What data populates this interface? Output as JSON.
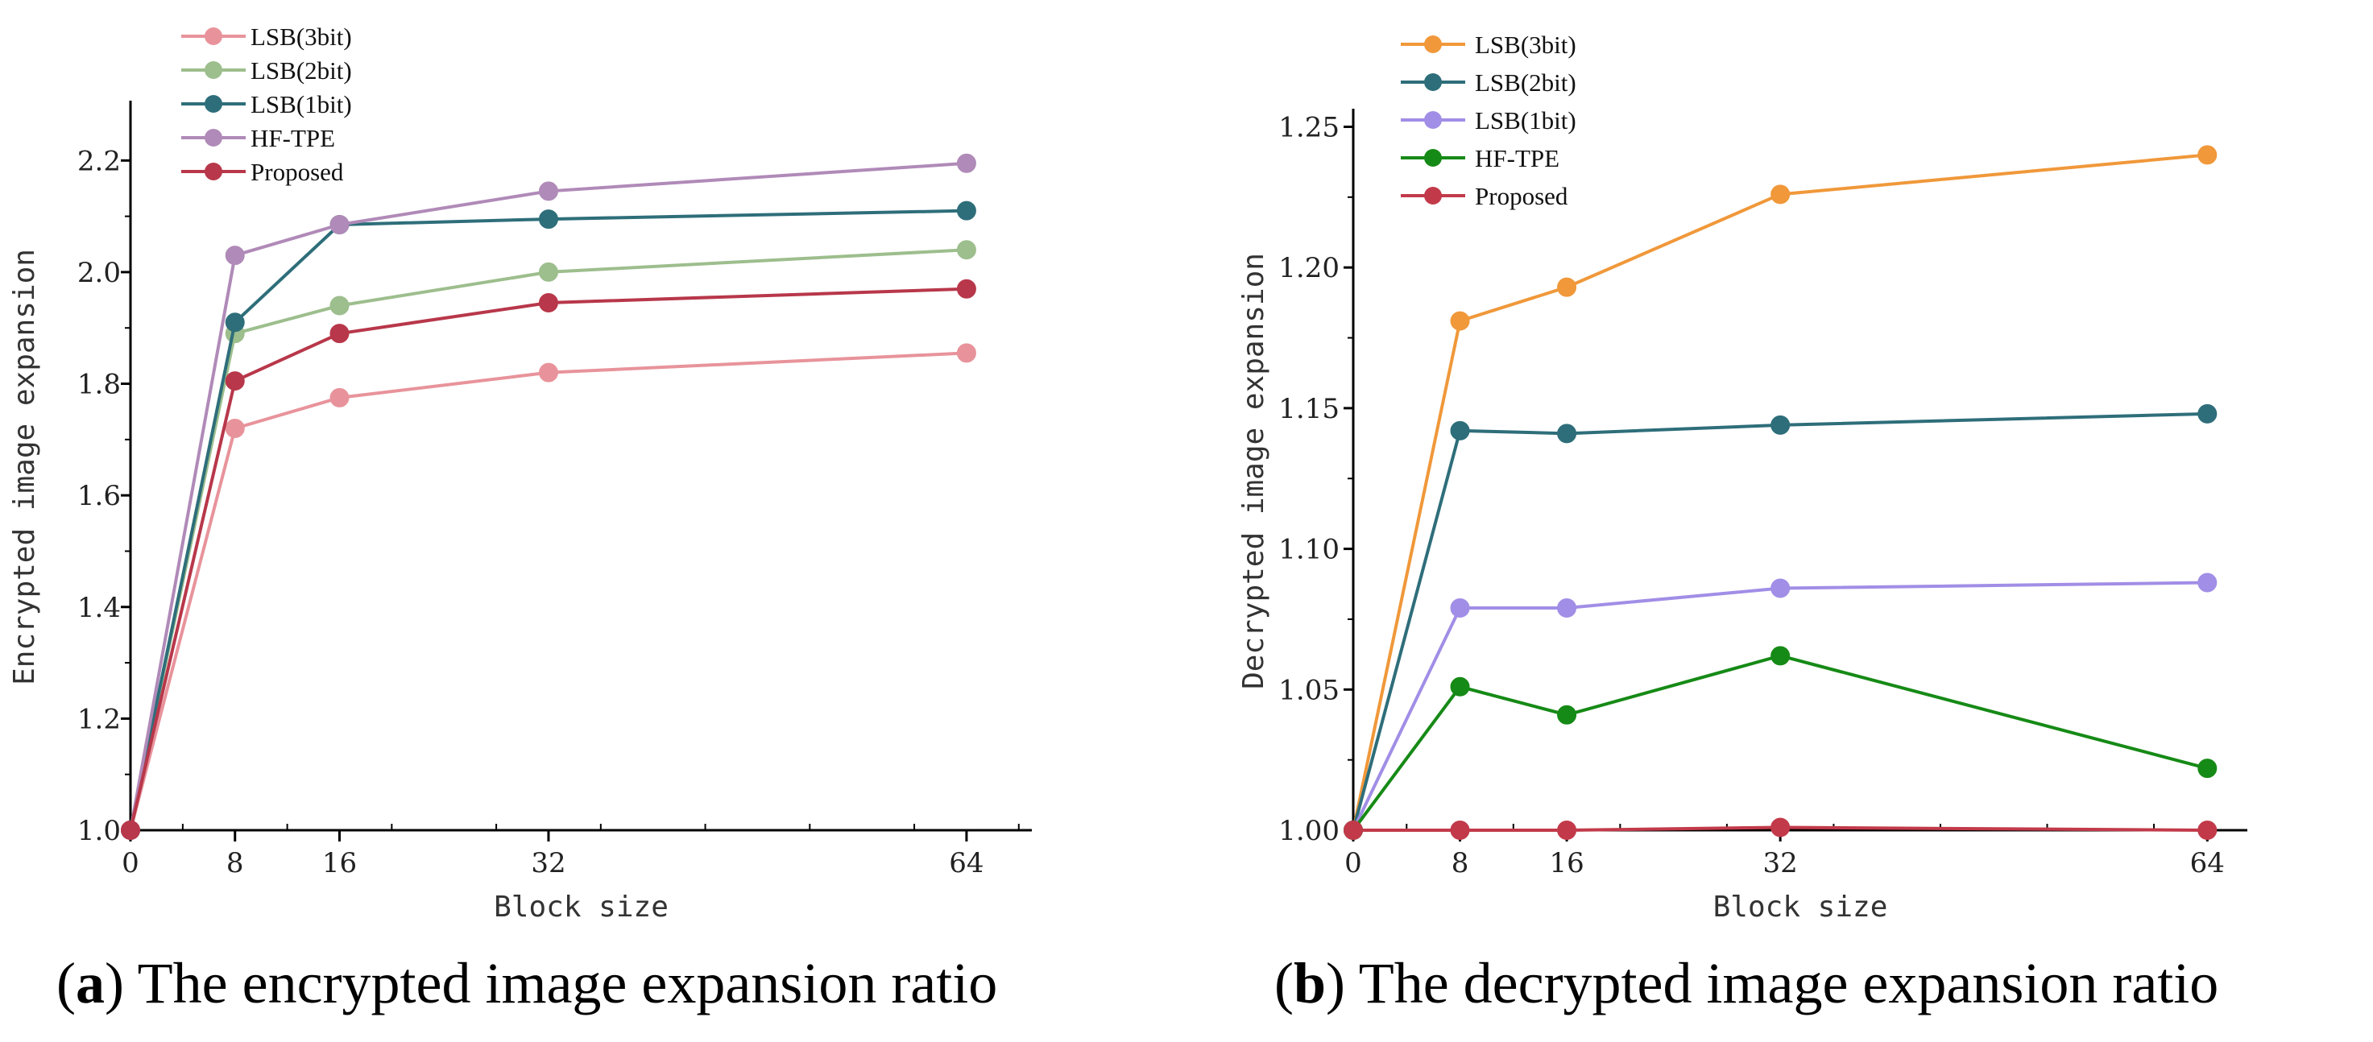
{
  "chart_data": [
    {
      "type": "line",
      "id": "a",
      "xlabel": "Block size",
      "ylabel": "Encrypted image expansion",
      "xlim": [
        0,
        69
      ],
      "ylim": [
        1.0,
        2.3
      ],
      "xticks": [
        0,
        8,
        16,
        32,
        64
      ],
      "xtick_labels": [
        "0",
        "8",
        "16",
        "32",
        "64"
      ],
      "yticks": [
        1.0,
        1.2,
        1.4,
        1.6,
        1.8,
        2.0,
        2.2
      ],
      "ytick_labels": [
        "1.0",
        "1.2",
        "1.4",
        "1.6",
        "1.8",
        "2.0",
        "2.2"
      ],
      "x": [
        0,
        8,
        16,
        32,
        64
      ],
      "legend_position": "top-left",
      "series": [
        {
          "name": "LSB(3bit)",
          "color": "#e8939b",
          "values": [
            1.0,
            1.72,
            1.775,
            1.82,
            1.855
          ]
        },
        {
          "name": "LSB(2bit)",
          "color": "#9dbe8d",
          "values": [
            1.0,
            1.89,
            1.94,
            2.0,
            2.04
          ]
        },
        {
          "name": "LSB(1bit)",
          "color": "#2e6e7a",
          "values": [
            1.0,
            1.91,
            2.085,
            2.095,
            2.11
          ]
        },
        {
          "name": "HF-TPE",
          "color": "#b08ab8",
          "values": [
            1.0,
            2.03,
            2.085,
            2.145,
            2.195
          ]
        },
        {
          "name": "Proposed",
          "color": "#b8374a",
          "values": [
            1.0,
            1.805,
            1.89,
            1.945,
            1.97
          ]
        }
      ]
    },
    {
      "type": "line",
      "id": "b",
      "xlabel": "Block size",
      "ylabel": "Decrypted image expansion",
      "xlim": [
        0,
        67
      ],
      "ylim": [
        1.0,
        1.255
      ],
      "xticks": [
        0,
        8,
        16,
        32,
        64
      ],
      "xtick_labels": [
        "0",
        "8",
        "16",
        "32",
        "64"
      ],
      "yticks": [
        1.0,
        1.05,
        1.1,
        1.15,
        1.2,
        1.25
      ],
      "ytick_labels": [
        "1.00",
        "1.05",
        "1.10",
        "1.15",
        "1.20",
        "1.25"
      ],
      "x": [
        0,
        8,
        16,
        32,
        64
      ],
      "legend_position": "top-left",
      "series": [
        {
          "name": "LSB(3bit)",
          "color": "#f0983a",
          "values": [
            1.0,
            1.181,
            1.193,
            1.226,
            1.24
          ]
        },
        {
          "name": "LSB(2bit)",
          "color": "#2e6e7a",
          "values": [
            1.0,
            1.142,
            1.141,
            1.144,
            1.148
          ]
        },
        {
          "name": "LSB(1bit)",
          "color": "#a18ee6",
          "values": [
            1.0,
            1.079,
            1.079,
            1.086,
            1.088
          ]
        },
        {
          "name": "HF-TPE",
          "color": "#168a16",
          "values": [
            1.0,
            1.051,
            1.041,
            1.062,
            1.022
          ]
        },
        {
          "name": "Proposed",
          "color": "#c23a4a",
          "values": [
            1.0,
            1.0,
            1.0,
            1.001,
            1.0
          ]
        }
      ]
    }
  ],
  "captions": {
    "a": {
      "letter": "a",
      "text": " The encrypted image expansion ratio"
    },
    "b": {
      "letter": "b",
      "text": " The decrypted image expansion ratio"
    }
  }
}
